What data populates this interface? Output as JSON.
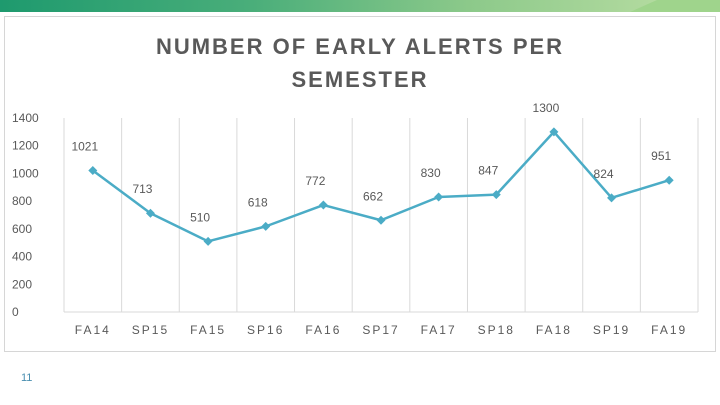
{
  "slide": {
    "number": "11"
  },
  "chart_data": {
    "type": "line",
    "title": "NUMBER OF EARLY ALERTS PER SEMESTER",
    "categories": [
      "FA14",
      "SP15",
      "FA15",
      "SP16",
      "FA16",
      "SP17",
      "FA17",
      "SP18",
      "FA18",
      "SP19",
      "FA19"
    ],
    "series": [
      {
        "values": [
          1021,
          713,
          510,
          618,
          772,
          662,
          830,
          847,
          1300,
          824,
          951
        ],
        "color": "#4bacc6"
      }
    ],
    "ylim": [
      0,
      1400
    ],
    "yticks": [
      0,
      200,
      400,
      600,
      800,
      1000,
      1200,
      1400
    ],
    "xlabel": "",
    "ylabel": "",
    "grid": "vertical",
    "data_labels": true,
    "legend": "none"
  }
}
